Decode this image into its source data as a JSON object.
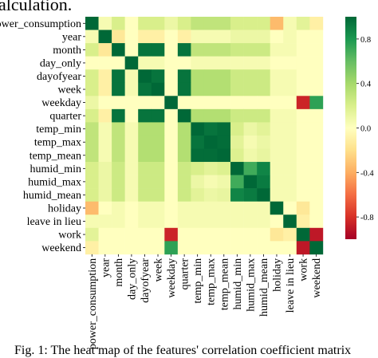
{
  "caption_top": "alculation.",
  "caption_bottom": "Fig. 1: The heat map of the features' correlation coefficient matrix",
  "chart_data": {
    "type": "heatmap",
    "title": "",
    "labels": [
      "power_consumption",
      "year",
      "month",
      "day_only",
      "dayofyear",
      "week",
      "weekday",
      "quarter",
      "temp_min",
      "temp_max",
      "temp_mean",
      "humid_min",
      "humid_max",
      "humid_mean",
      "holiday",
      "leave in lieu",
      "work",
      "weekend"
    ],
    "colorbar": {
      "ticks": [
        0.8,
        0.4,
        0.0,
        -0.4,
        -0.8
      ],
      "tick_labels": [
        "0.8",
        "0.4",
        "0.0",
        "-0.4",
        "-0.8"
      ],
      "range": [
        -1,
        1
      ]
    },
    "colorscale": [
      "#a50026",
      "#d73027",
      "#f46d43",
      "#fdae61",
      "#fee08b",
      "#ffffbf",
      "#d9ef8b",
      "#a6d96a",
      "#66bd63",
      "#1a9850",
      "#006837"
    ],
    "matrix": [
      [
        1.0,
        0.05,
        0.2,
        0.0,
        0.2,
        0.2,
        0.1,
        0.2,
        0.3,
        0.3,
        0.3,
        0.2,
        0.2,
        0.2,
        -0.35,
        0.05,
        0.15,
        -0.1
      ],
      [
        0.05,
        1.0,
        -0.15,
        0.0,
        -0.1,
        -0.1,
        0.0,
        -0.1,
        0.05,
        0.05,
        0.05,
        0.1,
        0.1,
        0.1,
        0.0,
        0.05,
        0.0,
        0.0
      ],
      [
        0.2,
        -0.15,
        1.0,
        0.0,
        0.95,
        0.95,
        0.0,
        0.95,
        0.3,
        0.3,
        0.3,
        0.25,
        0.25,
        0.25,
        0.05,
        0.05,
        0.0,
        0.0
      ],
      [
        0.0,
        0.0,
        0.0,
        1.0,
        0.05,
        0.05,
        0.0,
        0.0,
        0.05,
        0.05,
        0.05,
        0.05,
        0.05,
        0.05,
        0.0,
        0.0,
        0.0,
        0.0
      ],
      [
        0.2,
        -0.1,
        0.95,
        0.05,
        1.0,
        0.95,
        0.0,
        0.95,
        0.35,
        0.35,
        0.35,
        0.25,
        0.25,
        0.25,
        0.05,
        0.05,
        0.0,
        0.0
      ],
      [
        0.2,
        -0.1,
        0.95,
        0.05,
        0.95,
        1.0,
        0.0,
        0.95,
        0.35,
        0.35,
        0.35,
        0.25,
        0.25,
        0.25,
        0.05,
        0.05,
        0.0,
        0.0
      ],
      [
        0.1,
        0.0,
        0.0,
        0.0,
        0.0,
        0.0,
        1.0,
        0.0,
        0.0,
        0.0,
        0.0,
        0.0,
        0.0,
        0.0,
        0.0,
        0.0,
        -0.85,
        0.75
      ],
      [
        0.2,
        -0.1,
        0.95,
        0.0,
        0.95,
        0.95,
        0.0,
        1.0,
        0.35,
        0.35,
        0.35,
        0.25,
        0.25,
        0.25,
        0.05,
        0.05,
        0.0,
        0.0
      ],
      [
        0.3,
        0.05,
        0.3,
        0.05,
        0.35,
        0.35,
        0.0,
        0.35,
        1.0,
        0.95,
        0.98,
        0.2,
        0.1,
        0.15,
        0.05,
        0.05,
        0.0,
        0.0
      ],
      [
        0.3,
        0.05,
        0.3,
        0.05,
        0.35,
        0.35,
        0.0,
        0.35,
        0.95,
        1.0,
        0.98,
        0.15,
        0.05,
        0.1,
        0.05,
        0.05,
        0.0,
        0.0
      ],
      [
        0.3,
        0.05,
        0.3,
        0.05,
        0.35,
        0.35,
        0.0,
        0.35,
        0.98,
        0.98,
        1.0,
        0.18,
        0.08,
        0.12,
        0.05,
        0.05,
        0.0,
        0.0
      ],
      [
        0.2,
        0.1,
        0.25,
        0.05,
        0.25,
        0.25,
        0.0,
        0.25,
        0.2,
        0.15,
        0.18,
        1.0,
        0.7,
        0.88,
        0.05,
        0.05,
        0.0,
        0.0
      ],
      [
        0.2,
        0.1,
        0.25,
        0.05,
        0.25,
        0.25,
        0.0,
        0.25,
        0.1,
        0.05,
        0.08,
        0.7,
        1.0,
        0.92,
        0.05,
        0.05,
        0.0,
        0.0
      ],
      [
        0.2,
        0.1,
        0.25,
        0.05,
        0.25,
        0.25,
        0.0,
        0.25,
        0.15,
        0.1,
        0.12,
        0.88,
        0.92,
        1.0,
        0.05,
        0.05,
        0.0,
        0.0
      ],
      [
        -0.35,
        0.0,
        0.05,
        0.0,
        0.05,
        0.05,
        0.0,
        0.05,
        0.05,
        0.05,
        0.05,
        0.05,
        0.05,
        0.05,
        1.0,
        0.0,
        -0.15,
        0.0
      ],
      [
        0.05,
        0.05,
        0.05,
        0.0,
        0.05,
        0.05,
        0.0,
        0.05,
        0.05,
        0.05,
        0.05,
        0.05,
        0.05,
        0.05,
        0.0,
        1.0,
        -0.1,
        0.0
      ],
      [
        0.15,
        0.0,
        0.0,
        0.0,
        0.0,
        0.0,
        -0.85,
        0.0,
        0.0,
        0.0,
        0.0,
        0.0,
        0.0,
        0.0,
        -0.15,
        -0.1,
        1.0,
        -0.9
      ],
      [
        -0.1,
        0.0,
        0.0,
        0.0,
        0.0,
        0.0,
        0.75,
        0.0,
        0.0,
        0.0,
        0.0,
        0.0,
        0.0,
        0.0,
        0.0,
        0.0,
        -0.9,
        1.0
      ]
    ]
  }
}
